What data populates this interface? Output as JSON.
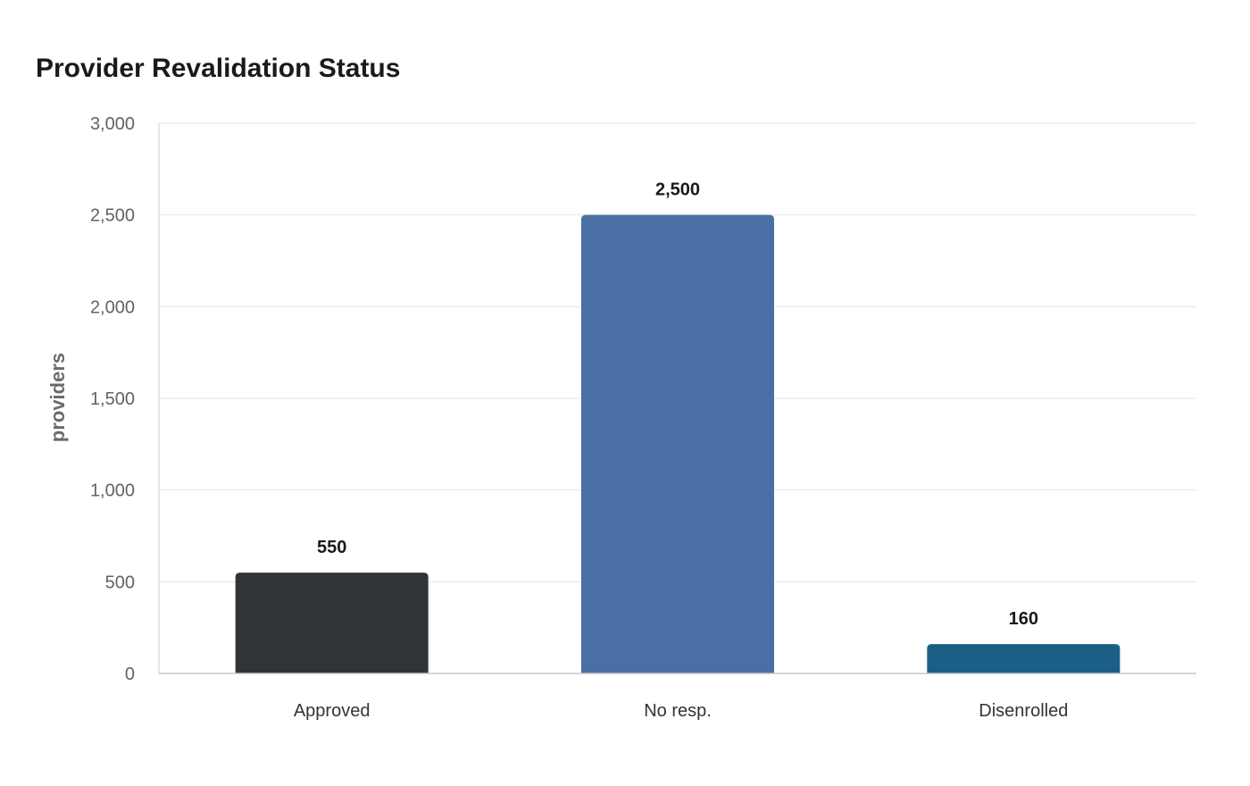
{
  "chart_data": {
    "type": "bar",
    "title": "Provider Revalidation Status",
    "xlabel": "",
    "ylabel": "providers",
    "categories": [
      "Approved",
      "No resp.",
      "Disenrolled"
    ],
    "values": [
      550,
      2500,
      160
    ],
    "value_labels": [
      "550",
      "2,500",
      "160"
    ],
    "colors": [
      "#2f3437",
      "#4a6fa5",
      "#1b5f87"
    ],
    "ylim": [
      0,
      3000
    ],
    "yticks": [
      0,
      500,
      1000,
      1500,
      2000,
      2500,
      3000
    ],
    "ytick_labels": [
      "0",
      "500",
      "1,000",
      "1,500",
      "2,000",
      "2,500",
      "3,000"
    ],
    "grid": true,
    "legend": "none"
  }
}
